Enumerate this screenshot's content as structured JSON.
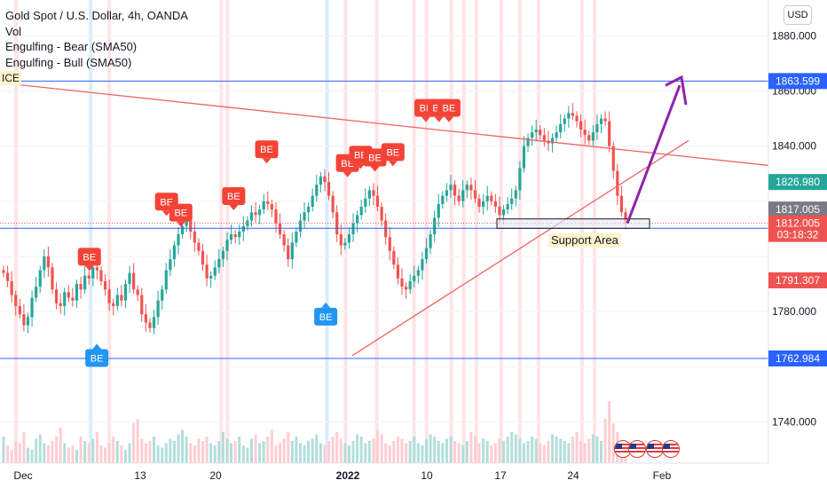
{
  "legend": {
    "title": "Gold Spot / U.S. Dollar, 4h, OANDA",
    "items": [
      "Vol",
      "Engulfing - Bear (SMA50)",
      "Engulfing - Bull (SMA50)"
    ]
  },
  "currency": "USD",
  "labels": {
    "ice": "ICE",
    "support": "Support Area"
  },
  "colors": {
    "up": "#26a69a",
    "down": "#ef5350",
    "line_blue": "#2962ff",
    "trend_red": "#f06262",
    "arrow": "#8e24aa",
    "bull_marker": "#2196f3",
    "bear_marker": "#f44336"
  },
  "chart_data": {
    "type": "candlestick",
    "ylim": [
      1725,
      1893
    ],
    "y_ticks": [
      1740,
      1760,
      1780,
      1800,
      1820,
      1840,
      1860,
      1880
    ],
    "y_tick_labels": [
      "1740.000",
      "",
      "1780.000",
      "",
      "",
      "1840.000",
      "1860.000",
      "1880.000"
    ],
    "x_ticks": [
      "Dec",
      "13",
      "20",
      "2022",
      "10",
      "17",
      "24",
      "Feb"
    ],
    "horizontal_lines": [
      {
        "label": "1863.599",
        "value": 1863.599
      },
      {
        "label": "1810.201",
        "value": 1810.201
      },
      {
        "label": "1762.984",
        "value": 1762.984
      }
    ],
    "price_labels": [
      {
        "label": "1826.980",
        "value": 1826.98,
        "color": "#26a69a"
      },
      {
        "label": "1817.005",
        "value": 1817.005,
        "color": "#787b86"
      },
      {
        "label": "1812.005",
        "value": 1812.005,
        "color": "#ef5350",
        "sub": "03:18:32"
      },
      {
        "label": "1791.307",
        "value": 1791.307,
        "color": "#ef5350"
      }
    ],
    "support_zone": [
      1810.2,
      1813.6
    ],
    "markers_bear": [
      {
        "label": "BE",
        "t": 0.138,
        "price": 1796
      },
      {
        "label": "BE",
        "t": 0.262,
        "price": 1816
      },
      {
        "label": "BE",
        "t": 0.285,
        "price": 1812
      },
      {
        "label": "BE",
        "t": 0.37,
        "price": 1818
      },
      {
        "label": "BE",
        "t": 0.423,
        "price": 1835
      },
      {
        "label": "BE",
        "t": 0.553,
        "price": 1830
      },
      {
        "label": "BE",
        "t": 0.574,
        "price": 1833
      },
      {
        "label": "BE",
        "t": 0.597,
        "price": 1832
      },
      {
        "label": "BE",
        "t": 0.626,
        "price": 1834
      },
      {
        "label": "BE",
        "t": 0.679,
        "price": 1850
      },
      {
        "label": "BE",
        "t": 0.7,
        "price": 1850
      },
      {
        "label": "BE",
        "t": 0.716,
        "price": 1850
      }
    ],
    "markers_bull": [
      {
        "label": "BE",
        "t": 0.15,
        "price": 1767
      },
      {
        "label": "BE",
        "t": 0.518,
        "price": 1782
      }
    ],
    "series_close": [
      1794,
      1791,
      1786,
      1782,
      1779,
      1775,
      1778,
      1785,
      1789,
      1795,
      1800,
      1796,
      1788,
      1783,
      1782,
      1787,
      1785,
      1784,
      1790,
      1788,
      1793,
      1792,
      1796,
      1795,
      1791,
      1788,
      1783,
      1782,
      1786,
      1784,
      1790,
      1794,
      1788,
      1786,
      1779,
      1776,
      1774,
      1778,
      1784,
      1788,
      1795,
      1799,
      1804,
      1808,
      1811,
      1813,
      1809,
      1805,
      1802,
      1797,
      1792,
      1793,
      1796,
      1799,
      1802,
      1806,
      1808,
      1807,
      1809,
      1811,
      1813,
      1816,
      1815,
      1817,
      1820,
      1819,
      1817,
      1812,
      1808,
      1804,
      1799,
      1805,
      1809,
      1813,
      1816,
      1818,
      1822,
      1826,
      1829,
      1827,
      1822,
      1816,
      1808,
      1804,
      1805,
      1808,
      1812,
      1815,
      1818,
      1821,
      1824,
      1822,
      1818,
      1813,
      1807,
      1802,
      1797,
      1792,
      1789,
      1788,
      1791,
      1793,
      1795,
      1799,
      1803,
      1808,
      1814,
      1819,
      1822,
      1824,
      1826,
      1822,
      1820,
      1824,
      1826,
      1824,
      1821,
      1818,
      1820,
      1822,
      1820,
      1818,
      1815,
      1817,
      1819,
      1821,
      1824,
      1832,
      1840,
      1843,
      1845,
      1846,
      1844,
      1842,
      1841,
      1843,
      1845,
      1848,
      1850,
      1852,
      1851,
      1849,
      1846,
      1844,
      1842,
      1845,
      1848,
      1850,
      1849,
      1840,
      1831,
      1822,
      1816,
      1812
    ],
    "volume": [
      12,
      8,
      6,
      10,
      9,
      14,
      7,
      6,
      11,
      13,
      9,
      8,
      10,
      12,
      16,
      9,
      7,
      8,
      6,
      12,
      10,
      9,
      11,
      14,
      8,
      7,
      9,
      12,
      10,
      8,
      6,
      9,
      18,
      20,
      11,
      9,
      10,
      12,
      8,
      7,
      9,
      11,
      10,
      13,
      15,
      12,
      9,
      8,
      11,
      10,
      12,
      9,
      8,
      10,
      14,
      11,
      9,
      10,
      12,
      8,
      7,
      11,
      13,
      9,
      10,
      12,
      15,
      8,
      9,
      11,
      14,
      10,
      12,
      9,
      8,
      10,
      11,
      13,
      9,
      8,
      10,
      12,
      14,
      11,
      9,
      8,
      10,
      13,
      12,
      9,
      10,
      11,
      15,
      13,
      9,
      8,
      10,
      12,
      11,
      9,
      10,
      12,
      9,
      8,
      11,
      13,
      12,
      10,
      9,
      11,
      12,
      10,
      9,
      8,
      10,
      14,
      12,
      9,
      11,
      10,
      8,
      9,
      11,
      10,
      12,
      14,
      13,
      11,
      9,
      10,
      12,
      11,
      9,
      8,
      10,
      13,
      12,
      11,
      10,
      9,
      12,
      14,
      10,
      9,
      11,
      13,
      12,
      10,
      20,
      28,
      18,
      14,
      10,
      9
    ]
  }
}
